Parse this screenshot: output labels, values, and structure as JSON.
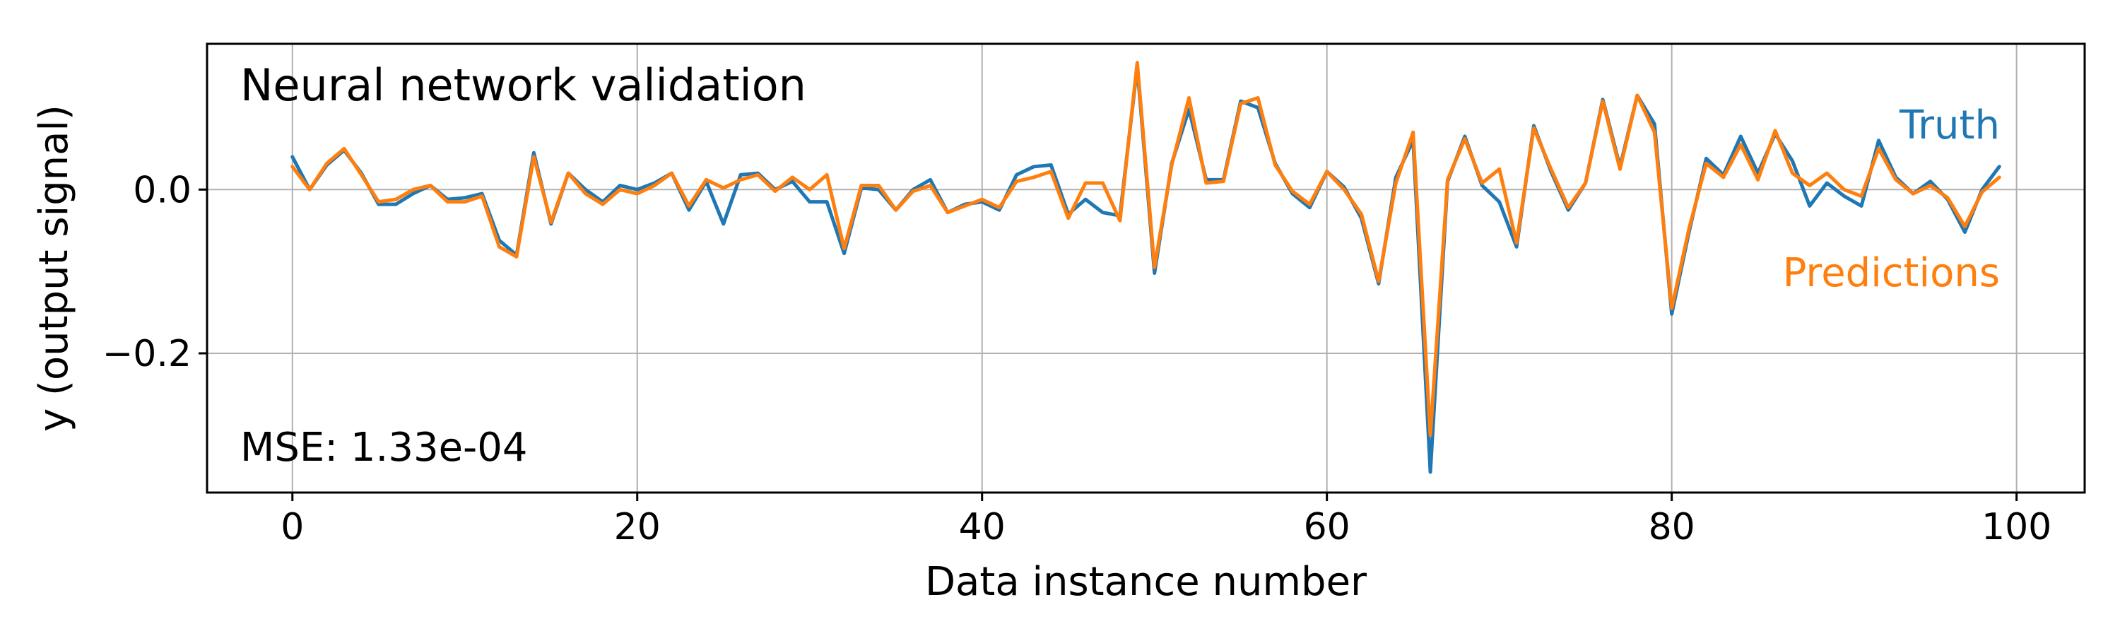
{
  "chart_data": {
    "type": "line",
    "title": "",
    "annotation_title": "Neural network validation",
    "annotation_mse": "MSE: 1.33e-04",
    "xlabel": "Data instance number",
    "ylabel": "y (output signal)",
    "xlim": [
      -4.95,
      103.95
    ],
    "ylim": [
      -0.37,
      0.178
    ],
    "xticks": [
      0,
      20,
      40,
      60,
      80,
      100
    ],
    "xtick_labels": [
      "0",
      "20",
      "40",
      "60",
      "80",
      "100"
    ],
    "yticks": [
      -0.2,
      0.0
    ],
    "ytick_labels": [
      "−0.2",
      "0.0"
    ],
    "grid": true,
    "legend_placement": "right (inline text labels)",
    "x": [
      0,
      1,
      2,
      3,
      4,
      5,
      6,
      7,
      8,
      9,
      10,
      11,
      12,
      13,
      14,
      15,
      16,
      17,
      18,
      19,
      20,
      21,
      22,
      23,
      24,
      25,
      26,
      27,
      28,
      29,
      30,
      31,
      32,
      33,
      34,
      35,
      36,
      37,
      38,
      39,
      40,
      41,
      42,
      43,
      44,
      45,
      46,
      47,
      48,
      49,
      50,
      51,
      52,
      53,
      54,
      55,
      56,
      57,
      58,
      59,
      60,
      61,
      62,
      63,
      64,
      65,
      66,
      67,
      68,
      69,
      70,
      71,
      72,
      73,
      74,
      75,
      76,
      77,
      78,
      79,
      80,
      81,
      82,
      83,
      84,
      85,
      86,
      87,
      88,
      89,
      90,
      91,
      92,
      93,
      94,
      95,
      96,
      97,
      98,
      99
    ],
    "series": [
      {
        "name": "Truth",
        "color": "#1f77b4",
        "values": [
          0.04,
          0.0,
          0.03,
          0.048,
          0.02,
          -0.018,
          -0.018,
          -0.005,
          0.005,
          -0.012,
          -0.01,
          -0.005,
          -0.062,
          -0.08,
          0.045,
          -0.042,
          0.02,
          0.0,
          -0.015,
          0.005,
          0.0,
          0.008,
          0.02,
          -0.025,
          0.01,
          -0.042,
          0.018,
          0.02,
          0.0,
          0.01,
          -0.015,
          -0.015,
          -0.078,
          0.002,
          0.0,
          -0.025,
          0.0,
          0.012,
          -0.028,
          -0.018,
          -0.015,
          -0.025,
          0.018,
          0.028,
          0.03,
          -0.03,
          -0.012,
          -0.028,
          -0.032,
          0.15,
          -0.102,
          0.032,
          0.098,
          0.012,
          0.012,
          0.108,
          0.1,
          0.032,
          -0.005,
          -0.022,
          0.022,
          0.003,
          -0.035,
          -0.115,
          0.015,
          0.06,
          -0.345,
          0.01,
          0.065,
          0.005,
          -0.015,
          -0.07,
          0.078,
          0.022,
          -0.025,
          0.008,
          0.11,
          0.028,
          0.115,
          0.08,
          -0.152,
          -0.052,
          0.038,
          0.018,
          0.065,
          0.02,
          0.068,
          0.035,
          -0.02,
          0.008,
          -0.008,
          -0.02,
          0.06,
          0.015,
          -0.005,
          0.01,
          -0.012,
          -0.052,
          0.0,
          0.028
        ]
      },
      {
        "name": "Predictions",
        "color": "#ff7f0e",
        "values": [
          0.028,
          0.0,
          0.032,
          0.05,
          0.018,
          -0.015,
          -0.012,
          0.0,
          0.005,
          -0.015,
          -0.015,
          -0.008,
          -0.07,
          -0.082,
          0.04,
          -0.04,
          0.02,
          -0.005,
          -0.018,
          0.0,
          -0.005,
          0.005,
          0.02,
          -0.02,
          0.012,
          0.002,
          0.012,
          0.018,
          -0.002,
          0.015,
          0.0,
          0.018,
          -0.072,
          0.005,
          0.005,
          -0.025,
          -0.002,
          0.005,
          -0.028,
          -0.02,
          -0.012,
          -0.022,
          0.01,
          0.015,
          0.022,
          -0.035,
          0.008,
          0.008,
          -0.038,
          0.155,
          -0.095,
          0.03,
          0.112,
          0.008,
          0.01,
          0.105,
          0.112,
          0.03,
          -0.002,
          -0.018,
          0.022,
          0.0,
          -0.03,
          -0.112,
          0.008,
          0.07,
          -0.3,
          0.012,
          0.062,
          0.008,
          0.025,
          -0.065,
          0.075,
          0.025,
          -0.022,
          0.008,
          0.108,
          0.025,
          0.115,
          0.07,
          -0.145,
          -0.048,
          0.032,
          0.015,
          0.055,
          0.012,
          0.072,
          0.02,
          0.005,
          0.02,
          0.0,
          -0.008,
          0.05,
          0.012,
          -0.005,
          0.005,
          -0.01,
          -0.045,
          -0.003,
          0.015
        ]
      }
    ]
  }
}
